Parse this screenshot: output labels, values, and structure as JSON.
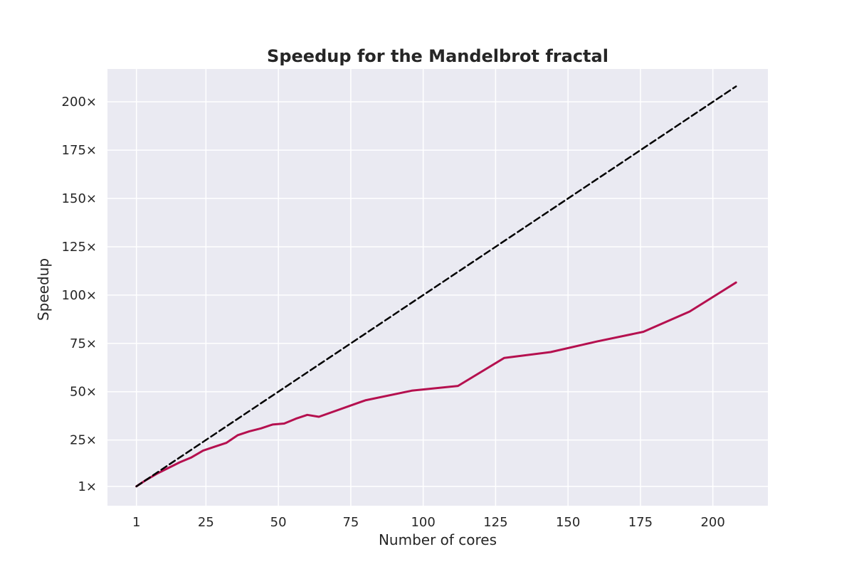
{
  "chart_data": {
    "type": "line",
    "title": "Speedup for the Mandelbrot fractal",
    "xlabel": "Number of cores",
    "ylabel": "Speedup",
    "xlim": [
      -9,
      219
    ],
    "ylim": [
      -9,
      217
    ],
    "grid": true,
    "background": "#eaeaf2",
    "grid_color": "#ffffff",
    "x_ticks": [
      {
        "value": 1,
        "label": "1"
      },
      {
        "value": 25,
        "label": "25"
      },
      {
        "value": 50,
        "label": "50"
      },
      {
        "value": 75,
        "label": "75"
      },
      {
        "value": 100,
        "label": "100"
      },
      {
        "value": 125,
        "label": "125"
      },
      {
        "value": 150,
        "label": "150"
      },
      {
        "value": 175,
        "label": "175"
      },
      {
        "value": 200,
        "label": "200"
      }
    ],
    "y_ticks": [
      {
        "value": 1,
        "label": "1×"
      },
      {
        "value": 25,
        "label": "25×"
      },
      {
        "value": 50,
        "label": "50×"
      },
      {
        "value": 75,
        "label": "75×"
      },
      {
        "value": 100,
        "label": "100×"
      },
      {
        "value": 125,
        "label": "125×"
      },
      {
        "value": 150,
        "label": "150×"
      },
      {
        "value": 175,
        "label": "175×"
      },
      {
        "value": 200,
        "label": "200×"
      }
    ],
    "series": [
      {
        "color": "#b5104f",
        "style": "solid",
        "x": [
          1,
          4,
          8,
          12,
          16,
          20,
          24,
          28,
          32,
          36,
          40,
          44,
          48,
          52,
          56,
          60,
          64,
          80,
          96,
          112,
          128,
          144,
          160,
          176,
          192,
          208
        ],
        "y": [
          1,
          4,
          7.5,
          10.5,
          13.5,
          16,
          19.5,
          21.5,
          23.5,
          27.5,
          29.5,
          31,
          33,
          33.5,
          36,
          38,
          37,
          45.5,
          50.5,
          53,
          67.5,
          70.5,
          76,
          81,
          91.5,
          106.5
        ]
      },
      {
        "color": "#000000",
        "style": "dashed",
        "x": [
          1,
          208
        ],
        "y": [
          1,
          208
        ]
      }
    ]
  }
}
